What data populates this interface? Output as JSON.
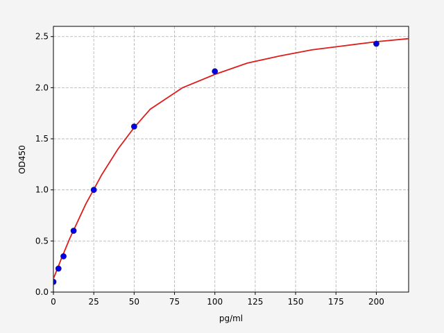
{
  "chart_data": {
    "type": "scatter",
    "xlabel": "pg/ml",
    "ylabel": "OD450",
    "points": {
      "color": "#0000ee",
      "edge": "#1a1a6e",
      "x": [
        0,
        3.125,
        6.25,
        12.5,
        25,
        50,
        100,
        200
      ],
      "values": [
        0.1,
        0.23,
        0.35,
        0.6,
        1.0,
        1.62,
        2.16,
        2.43
      ]
    },
    "curve": {
      "color": "#dd1c1c",
      "x": [
        0,
        5,
        10,
        20,
        30,
        40,
        50,
        60,
        80,
        100,
        120,
        140,
        160,
        180,
        200,
        220
      ],
      "values": [
        0.13,
        0.33,
        0.52,
        0.86,
        1.15,
        1.4,
        1.61,
        1.79,
        2.0,
        2.13,
        2.24,
        2.31,
        2.37,
        2.41,
        2.45,
        2.48
      ]
    },
    "xlim": [
      0,
      220
    ],
    "ylim": [
      0,
      2.6
    ],
    "xticks": [
      0,
      25,
      50,
      75,
      100,
      125,
      150,
      175,
      200
    ],
    "yticks": [
      {
        "value": 0,
        "label": "0.0"
      },
      0.5,
      {
        "value": 1,
        "label": "1.0"
      },
      1.5,
      {
        "value": 2,
        "label": "2.0"
      },
      2.5
    ],
    "grid": true
  }
}
